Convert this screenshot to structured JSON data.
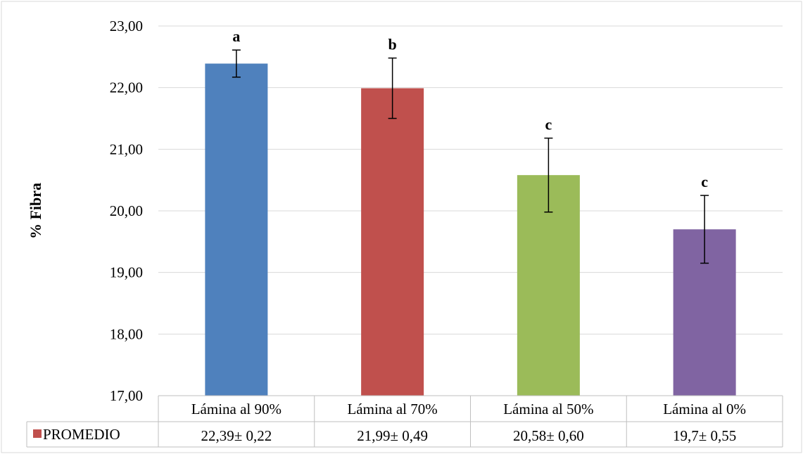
{
  "chart_data": {
    "type": "bar",
    "categories": [
      "Lámina al  90%",
      "Lámina al  70%",
      "Lámina al  50%",
      "Lámina al  0%"
    ],
    "series": [
      {
        "name": "PROMEDIO",
        "values": [
          22.39,
          21.99,
          20.58,
          19.7
        ],
        "error": [
          0.22,
          0.49,
          0.6,
          0.55
        ],
        "colors": [
          "#4F81BD",
          "#C0504D",
          "#9BBB59",
          "#8064A2"
        ],
        "significance_letters": [
          "a",
          "b",
          "c",
          "c"
        ],
        "table_values": [
          "22,39± 0,22",
          "21,99± 0,49",
          "20,58± 0,60",
          "19,7± 0,55"
        ]
      }
    ],
    "ylabel": "% Fibra",
    "xlabel": "",
    "ylim": [
      17,
      23
    ],
    "yticks": [
      "17,00",
      "18,00",
      "19,00",
      "20,00",
      "21,00",
      "22,00",
      "23,00"
    ],
    "grid": true,
    "legend": "data-table",
    "legend_color": "#C0504D"
  }
}
